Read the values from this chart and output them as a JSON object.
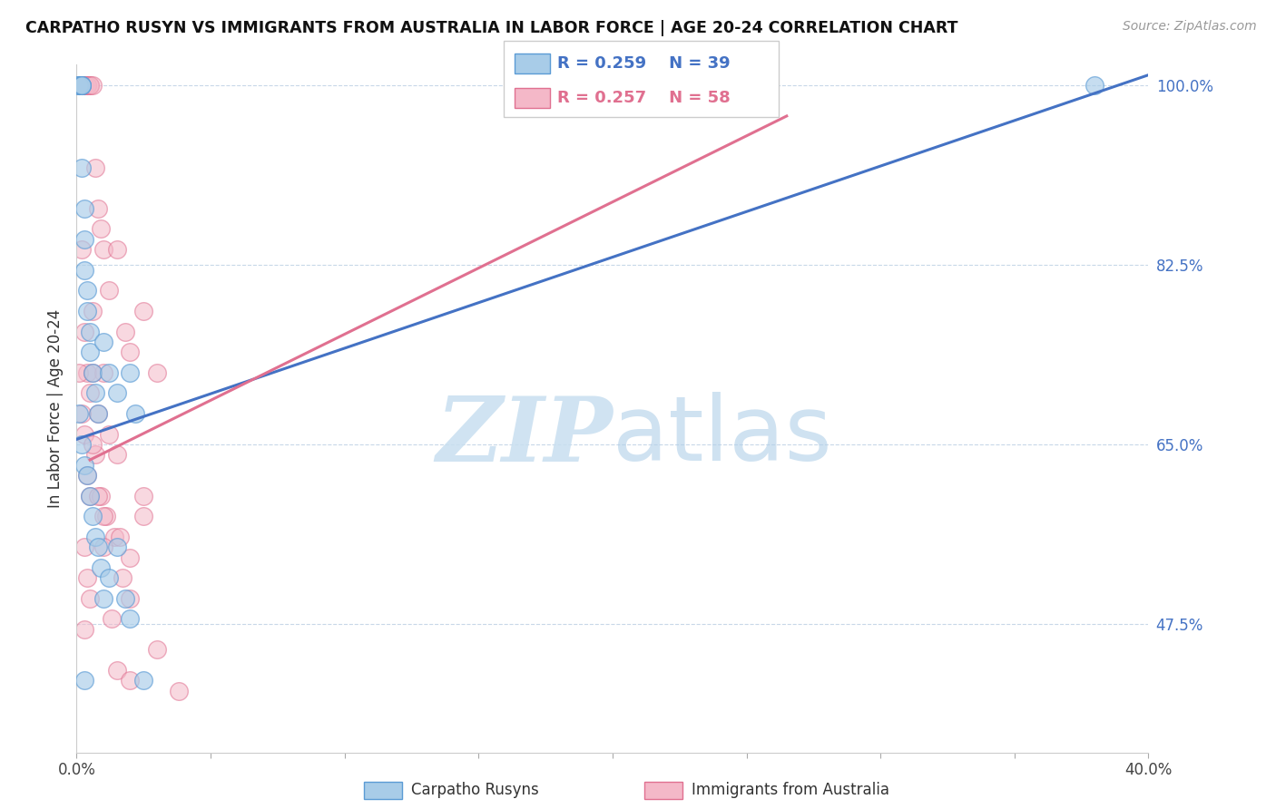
{
  "title": "CARPATHO RUSYN VS IMMIGRANTS FROM AUSTRALIA IN LABOR FORCE | AGE 20-24 CORRELATION CHART",
  "source": "Source: ZipAtlas.com",
  "ylabel": "In Labor Force | Age 20-24",
  "watermark_zip": "ZIP",
  "watermark_atlas": "atlas",
  "blue_label": "Carpatho Rusyns",
  "pink_label": "Immigrants from Australia",
  "blue_R": 0.259,
  "blue_N": 39,
  "pink_R": 0.257,
  "pink_N": 58,
  "blue_color": "#a8cce8",
  "pink_color": "#f4b8c8",
  "blue_edge_color": "#5b9bd5",
  "pink_edge_color": "#e07090",
  "blue_line_color": "#4472c4",
  "pink_line_color": "#e07090",
  "xmin": 0.0,
  "xmax": 0.4,
  "ymin": 0.35,
  "ymax": 1.02,
  "grid_lines": [
    1.0,
    0.825,
    0.65,
    0.475
  ],
  "right_ytick_labels": [
    "100.0%",
    "82.5%",
    "65.0%",
    "47.5%"
  ],
  "right_ytick_label_color": "#4472c4",
  "blue_line_x0": 0.0,
  "blue_line_y0": 0.655,
  "blue_line_x1": 0.4,
  "blue_line_y1": 1.01,
  "pink_line_x0": 0.005,
  "pink_line_y0": 0.635,
  "pink_line_x1": 0.265,
  "pink_line_y1": 0.97,
  "blue_scatter_x": [
    0.001,
    0.001,
    0.001,
    0.002,
    0.002,
    0.002,
    0.002,
    0.003,
    0.003,
    0.003,
    0.004,
    0.004,
    0.005,
    0.005,
    0.006,
    0.007,
    0.008,
    0.01,
    0.012,
    0.015,
    0.02,
    0.022,
    0.38,
    0.001,
    0.002,
    0.003,
    0.004,
    0.005,
    0.006,
    0.007,
    0.008,
    0.009,
    0.01,
    0.012,
    0.015,
    0.018,
    0.02,
    0.025,
    0.003
  ],
  "blue_scatter_y": [
    1.0,
    1.0,
    1.0,
    1.0,
    1.0,
    1.0,
    0.92,
    0.88,
    0.85,
    0.82,
    0.8,
    0.78,
    0.76,
    0.74,
    0.72,
    0.7,
    0.68,
    0.75,
    0.72,
    0.7,
    0.72,
    0.68,
    1.0,
    0.68,
    0.65,
    0.63,
    0.62,
    0.6,
    0.58,
    0.56,
    0.55,
    0.53,
    0.5,
    0.52,
    0.55,
    0.5,
    0.48,
    0.42,
    0.42
  ],
  "pink_scatter_x": [
    0.001,
    0.002,
    0.002,
    0.003,
    0.003,
    0.004,
    0.004,
    0.005,
    0.005,
    0.006,
    0.007,
    0.008,
    0.009,
    0.01,
    0.012,
    0.015,
    0.018,
    0.02,
    0.025,
    0.03,
    0.002,
    0.003,
    0.004,
    0.005,
    0.006,
    0.008,
    0.01,
    0.012,
    0.015,
    0.001,
    0.002,
    0.003,
    0.004,
    0.005,
    0.007,
    0.009,
    0.011,
    0.014,
    0.017,
    0.02,
    0.025,
    0.003,
    0.004,
    0.005,
    0.006,
    0.008,
    0.01,
    0.013,
    0.016,
    0.02,
    0.025,
    0.003,
    0.006,
    0.01,
    0.015,
    0.02,
    0.03,
    0.038
  ],
  "pink_scatter_y": [
    1.0,
    1.0,
    1.0,
    1.0,
    1.0,
    1.0,
    1.0,
    1.0,
    1.0,
    1.0,
    0.92,
    0.88,
    0.86,
    0.84,
    0.8,
    0.84,
    0.76,
    0.74,
    0.78,
    0.72,
    0.84,
    0.76,
    0.72,
    0.7,
    0.78,
    0.68,
    0.72,
    0.66,
    0.64,
    0.72,
    0.68,
    0.66,
    0.62,
    0.6,
    0.64,
    0.6,
    0.58,
    0.56,
    0.52,
    0.54,
    0.58,
    0.55,
    0.52,
    0.5,
    0.72,
    0.6,
    0.58,
    0.48,
    0.56,
    0.5,
    0.6,
    0.47,
    0.65,
    0.55,
    0.43,
    0.42,
    0.45,
    0.41
  ]
}
